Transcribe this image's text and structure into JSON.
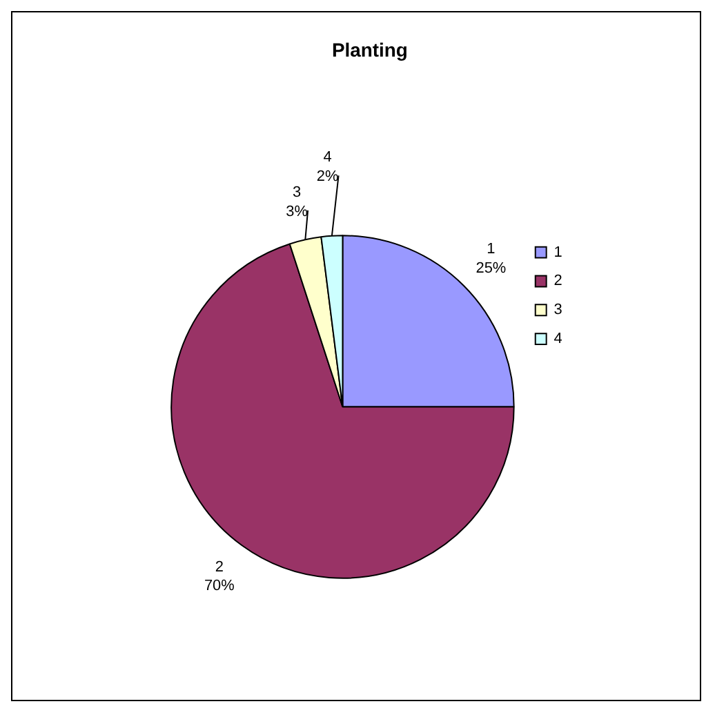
{
  "chart_data": {
    "type": "pie",
    "title": "Planting",
    "categories": [
      "1",
      "2",
      "3",
      "4"
    ],
    "values": [
      25,
      70,
      3,
      2
    ],
    "colors": [
      "#9999ff",
      "#993366",
      "#ffffcc",
      "#ccffff"
    ],
    "value_labels": [
      "25%",
      "70%",
      "3%",
      "2%"
    ],
    "legend": "right"
  }
}
